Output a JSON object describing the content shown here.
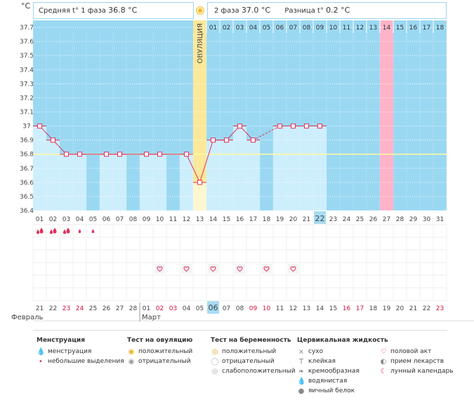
{
  "header": {
    "unit_label": "°C",
    "phase1_label": "Средняя t° 1 фаза",
    "phase1_value": "36.8 °C",
    "phase2_label": "2 фаза",
    "phase2_value": "37.0 °C",
    "diff_label": "Разница t°",
    "diff_value": "0.2 °C",
    "ovulation_label": "ОВУЛЯЦИЯ"
  },
  "colors": {
    "plot_bg": "#9ad8f2",
    "grid": "#ffffff",
    "bar_fill": "#cdeefc",
    "ovulation": "#fbe89a",
    "pink": "#ffb3c8",
    "line": "#e0305a",
    "coverline": "#fff8a0",
    "today": "#a6dcf2"
  },
  "chart_data": {
    "type": "line",
    "title": "",
    "ylabel": "°C",
    "ylim": [
      36.4,
      37.7
    ],
    "yticks": [
      "37.7",
      "37.6",
      "37.5",
      "37.4",
      "37.3",
      "37.2",
      "37.1",
      "37",
      "36.9",
      "36.8",
      "36.7",
      "36.6",
      "36.5",
      "36.4"
    ],
    "coverline": 36.8,
    "cycle_days": [
      "01",
      "02",
      "03",
      "04",
      "05",
      "06",
      "07",
      "08",
      "09",
      "10",
      "11",
      "12",
      "13",
      "14",
      "15",
      "16",
      "17",
      "18",
      "19",
      "20",
      "21",
      "22",
      "23",
      "24",
      "25",
      "26",
      "27",
      "28",
      "29",
      "30",
      "31"
    ],
    "phase2_days": [
      "01",
      "02",
      "03",
      "04",
      "05",
      "06",
      "07",
      "08",
      "09",
      "10",
      "11",
      "12",
      "13",
      "14",
      "15",
      "16",
      "17",
      "18"
    ],
    "ovulation_day": 13,
    "highlight_day": 27,
    "today_day": 22,
    "temps": [
      37.0,
      36.9,
      36.8,
      36.8,
      null,
      36.8,
      36.8,
      null,
      36.8,
      36.8,
      null,
      36.8,
      36.6,
      36.9,
      36.9,
      37.0,
      36.9,
      null,
      37.0,
      37.0,
      37.0,
      37.0,
      null,
      null,
      null,
      null,
      null,
      null,
      null,
      null,
      null
    ],
    "dashed_segments": [
      [
        17,
        19
      ]
    ],
    "dates": [
      "21",
      "22",
      "23",
      "24",
      "25",
      "26",
      "27",
      "28",
      "01",
      "02",
      "03",
      "04",
      "05",
      "06",
      "07",
      "08",
      "09",
      "10",
      "11",
      "12",
      "13",
      "14",
      "15",
      "16",
      "17",
      "18",
      "19",
      "20",
      "21",
      "22",
      "23"
    ],
    "weekend_dates": [
      3,
      4,
      10,
      11,
      17,
      18,
      24,
      25,
      31
    ],
    "months": [
      {
        "name": "Февраль",
        "col": 1
      },
      {
        "name": "Март",
        "col": 9
      }
    ],
    "menstruation": [
      1,
      2,
      3,
      4,
      5
    ],
    "menstruation_light": [
      4,
      5
    ],
    "intercourse": [
      10,
      12,
      14,
      16,
      18,
      20
    ]
  },
  "legend": {
    "groups": [
      {
        "title": "Менструация",
        "items": [
          {
            "icon": "drop-double",
            "label": "менструация"
          },
          {
            "icon": "drop-small",
            "label": "небольшие выделения"
          }
        ]
      },
      {
        "title": "Тест на овуляцию",
        "items": [
          {
            "icon": "sun-positive",
            "label": "положительный"
          },
          {
            "icon": "sun-negative",
            "label": "отрицательный"
          }
        ]
      },
      {
        "title": "Тест на беременность",
        "items": [
          {
            "icon": "preg-positive",
            "label": "положительный"
          },
          {
            "icon": "preg-negative",
            "label": "отрицательный"
          },
          {
            "icon": "preg-weak",
            "label": "слабоположительный"
          }
        ]
      },
      {
        "title": "Цервикальная жидкость",
        "items": [
          {
            "icon": "×",
            "label": "сухо"
          },
          {
            "icon": "T",
            "label": "клейкая"
          },
          {
            "icon": "❧",
            "label": "кремообразная"
          },
          {
            "icon": "💧",
            "label": "водянистая"
          },
          {
            "icon": "●",
            "label": "яичный белок"
          }
        ]
      },
      {
        "title": "",
        "items": [
          {
            "icon": "♡",
            "label": "половой акт"
          },
          {
            "icon": "◐",
            "label": "прием лекарств"
          },
          {
            "icon": "☾",
            "label": "лунный календарь"
          }
        ]
      }
    ]
  }
}
